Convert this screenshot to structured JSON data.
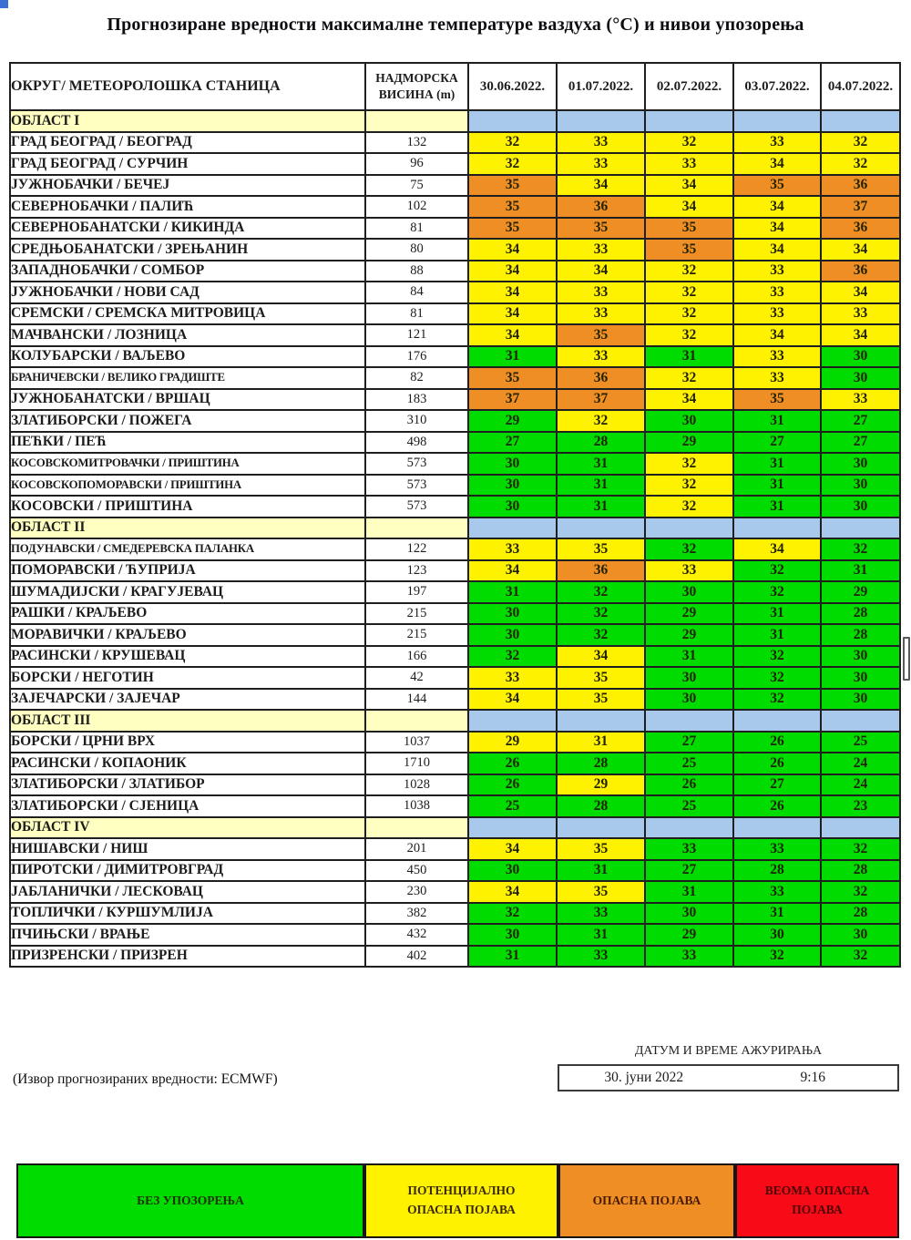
{
  "title": "Прогнозиране вредности максималне температуре ваздуха (°C) и нивои упозорења",
  "colors": {
    "green": "#00DC00",
    "yellow": "#FFF200",
    "orange": "#EF8E24",
    "red": "#F80B16",
    "header_blue": "#A8C8EC",
    "section_yellow": "#FFFFC2",
    "white": "#FFFFFF"
  },
  "table": {
    "station_header": "ОКРУГ/ МЕТЕОРОЛОШКА СТАНИЦА",
    "altitude_header_line1": "НАДМОРСКА",
    "altitude_header_line2": "ВИСИНА (m)",
    "dates": [
      "30.06.2022.",
      "01.07.2022.",
      "02.07.2022.",
      "03.07.2022.",
      "04.07.2022."
    ],
    "sections": [
      {
        "label": "ОБЛАСТ I",
        "rows": [
          {
            "station": "ГРАД БЕОГРАД / БЕОГРАД",
            "altitude": "132",
            "temps": [
              32,
              33,
              32,
              33,
              32
            ],
            "levels": [
              "yellow",
              "yellow",
              "yellow",
              "yellow",
              "yellow"
            ]
          },
          {
            "station": "ГРАД БЕОГРАД / СУРЧИН",
            "altitude": "96",
            "temps": [
              32,
              33,
              33,
              34,
              32
            ],
            "levels": [
              "yellow",
              "yellow",
              "yellow",
              "yellow",
              "yellow"
            ]
          },
          {
            "station": "ЈУЖНОБАЧКИ / БЕЧЕЈ",
            "altitude": "75",
            "temps": [
              35,
              34,
              34,
              35,
              36
            ],
            "levels": [
              "orange",
              "yellow",
              "yellow",
              "orange",
              "orange"
            ]
          },
          {
            "station": "СЕВЕРНОБАЧКИ / ПАЛИЋ",
            "altitude": "102",
            "temps": [
              35,
              36,
              34,
              34,
              37
            ],
            "levels": [
              "orange",
              "orange",
              "yellow",
              "yellow",
              "orange"
            ]
          },
          {
            "station": "СЕВЕРНОБАНАТСКИ / КИКИНДА",
            "altitude": "81",
            "temps": [
              35,
              35,
              35,
              34,
              36
            ],
            "levels": [
              "orange",
              "orange",
              "orange",
              "yellow",
              "orange"
            ]
          },
          {
            "station": "СРЕДЊОБАНАТСКИ / ЗРЕЊАНИН",
            "altitude": "80",
            "temps": [
              34,
              33,
              35,
              34,
              34
            ],
            "levels": [
              "yellow",
              "yellow",
              "orange",
              "yellow",
              "yellow"
            ]
          },
          {
            "station": "ЗАПАДНОБАЧКИ / СОМБОР",
            "altitude": "88",
            "temps": [
              34,
              34,
              32,
              33,
              36
            ],
            "levels": [
              "yellow",
              "yellow",
              "yellow",
              "yellow",
              "orange"
            ]
          },
          {
            "station": "ЈУЖНОБАЧКИ / НОВИ САД",
            "altitude": "84",
            "temps": [
              34,
              33,
              32,
              33,
              34
            ],
            "levels": [
              "yellow",
              "yellow",
              "yellow",
              "yellow",
              "yellow"
            ]
          },
          {
            "station": "СРЕМСКИ / СРЕМСКА МИТРОВИЦА",
            "altitude": "81",
            "temps": [
              34,
              33,
              32,
              33,
              33
            ],
            "levels": [
              "yellow",
              "yellow",
              "yellow",
              "yellow",
              "yellow"
            ]
          },
          {
            "station": "МАЧВАНСКИ / ЛОЗНИЦА",
            "altitude": "121",
            "temps": [
              34,
              35,
              32,
              34,
              34
            ],
            "levels": [
              "yellow",
              "orange",
              "yellow",
              "yellow",
              "yellow"
            ]
          },
          {
            "station": "КОЛУБАРСКИ / ВАЉЕВО",
            "altitude": "176",
            "temps": [
              31,
              33,
              31,
              33,
              30
            ],
            "levels": [
              "green",
              "yellow",
              "green",
              "yellow",
              "green"
            ]
          },
          {
            "station": "БРАНИЧЕВСКИ / ВЕЛИКО ГРАДИШТЕ",
            "altitude": "82",
            "temps": [
              35,
              36,
              32,
              33,
              30
            ],
            "levels": [
              "orange",
              "orange",
              "yellow",
              "yellow",
              "green"
            ]
          },
          {
            "station": "ЈУЖНОБАНАТСКИ / ВРШАЦ",
            "altitude": "183",
            "temps": [
              37,
              37,
              34,
              35,
              33
            ],
            "levels": [
              "orange",
              "orange",
              "yellow",
              "orange",
              "yellow"
            ]
          },
          {
            "station": "ЗЛАТИБОРСКИ / ПОЖЕГА",
            "altitude": "310",
            "temps": [
              29,
              32,
              30,
              31,
              27
            ],
            "levels": [
              "green",
              "yellow",
              "green",
              "green",
              "green"
            ]
          },
          {
            "station": "ПЕЋКИ / ПЕЋ",
            "altitude": "498",
            "temps": [
              27,
              28,
              29,
              27,
              27
            ],
            "levels": [
              "green",
              "green",
              "green",
              "green",
              "green"
            ]
          },
          {
            "station": "КОСОВСКОМИТРОВАЧКИ / ПРИШТИНА",
            "altitude": "573",
            "temps": [
              30,
              31,
              32,
              31,
              30
            ],
            "levels": [
              "green",
              "green",
              "yellow",
              "green",
              "green"
            ]
          },
          {
            "station": "КОСОВСКОПОМОРАВСКИ / ПРИШТИНА",
            "altitude": "573",
            "temps": [
              30,
              31,
              32,
              31,
              30
            ],
            "levels": [
              "green",
              "green",
              "yellow",
              "green",
              "green"
            ]
          },
          {
            "station": "КОСОВСКИ / ПРИШТИНА",
            "altitude": "573",
            "temps": [
              30,
              31,
              32,
              31,
              30
            ],
            "levels": [
              "green",
              "green",
              "yellow",
              "green",
              "green"
            ]
          }
        ]
      },
      {
        "label": "ОБЛАСТ II",
        "rows": [
          {
            "station": "ПОДУНАВСКИ / СМЕДЕРЕВСКА ПАЛАНКА",
            "altitude": "122",
            "temps": [
              33,
              35,
              32,
              34,
              32
            ],
            "levels": [
              "yellow",
              "yellow",
              "green",
              "yellow",
              "green"
            ]
          },
          {
            "station": "ПОМОРАВСКИ / ЋУПРИЈА",
            "altitude": "123",
            "temps": [
              34,
              36,
              33,
              32,
              31
            ],
            "levels": [
              "yellow",
              "orange",
              "yellow",
              "green",
              "green"
            ]
          },
          {
            "station": "ШУМАДИЈСКИ / КРАГУЈЕВАЦ",
            "altitude": "197",
            "temps": [
              31,
              32,
              30,
              32,
              29
            ],
            "levels": [
              "green",
              "green",
              "green",
              "green",
              "green"
            ]
          },
          {
            "station": "РАШКИ / КРАЉЕВО",
            "altitude": "215",
            "temps": [
              30,
              32,
              29,
              31,
              28
            ],
            "levels": [
              "green",
              "green",
              "green",
              "green",
              "green"
            ]
          },
          {
            "station": "МОРАВИЧКИ / КРАЉЕВО",
            "altitude": "215",
            "temps": [
              30,
              32,
              29,
              31,
              28
            ],
            "levels": [
              "green",
              "green",
              "green",
              "green",
              "green"
            ]
          },
          {
            "station": "РАСИНСКИ / КРУШЕВАЦ",
            "altitude": "166",
            "temps": [
              32,
              34,
              31,
              32,
              30
            ],
            "levels": [
              "green",
              "yellow",
              "green",
              "green",
              "green"
            ]
          },
          {
            "station": "БОРСКИ / НЕГОТИН",
            "altitude": "42",
            "temps": [
              33,
              35,
              30,
              32,
              30
            ],
            "levels": [
              "yellow",
              "yellow",
              "green",
              "green",
              "green"
            ]
          },
          {
            "station": "ЗАЈЕЧАРСКИ / ЗАЈЕЧАР",
            "altitude": "144",
            "temps": [
              34,
              35,
              30,
              32,
              30
            ],
            "levels": [
              "yellow",
              "yellow",
              "green",
              "green",
              "green"
            ]
          }
        ]
      },
      {
        "label": "ОБЛАСТ III",
        "rows": [
          {
            "station": "БОРСКИ / ЦРНИ ВРХ",
            "altitude": "1037",
            "temps": [
              29,
              31,
              27,
              26,
              25
            ],
            "levels": [
              "yellow",
              "yellow",
              "green",
              "green",
              "green"
            ]
          },
          {
            "station": "РАСИНСКИ / КОПАОНИК",
            "altitude": "1710",
            "temps": [
              26,
              28,
              25,
              26,
              24
            ],
            "levels": [
              "green",
              "green",
              "green",
              "green",
              "green"
            ]
          },
          {
            "station": "ЗЛАТИБОРСКИ / ЗЛАТИБОР",
            "altitude": "1028",
            "temps": [
              26,
              29,
              26,
              27,
              24
            ],
            "levels": [
              "green",
              "yellow",
              "green",
              "green",
              "green"
            ]
          },
          {
            "station": "ЗЛАТИБОРСКИ / СЈЕНИЦА",
            "altitude": "1038",
            "temps": [
              25,
              28,
              25,
              26,
              23
            ],
            "levels": [
              "green",
              "green",
              "green",
              "green",
              "green"
            ]
          }
        ]
      },
      {
        "label": "ОБЛАСТ IV",
        "rows": [
          {
            "station": "НИШАВСКИ / НИШ",
            "altitude": "201",
            "temps": [
              34,
              35,
              33,
              33,
              32
            ],
            "levels": [
              "yellow",
              "yellow",
              "green",
              "green",
              "green"
            ]
          },
          {
            "station": "ПИРОТСКИ / ДИМИТРОВГРАД",
            "altitude": "450",
            "temps": [
              30,
              31,
              27,
              28,
              28
            ],
            "levels": [
              "green",
              "green",
              "green",
              "green",
              "green"
            ]
          },
          {
            "station": "ЈАБЛАНИЧКИ / ЛЕСКОВАЦ",
            "altitude": "230",
            "temps": [
              34,
              35,
              31,
              33,
              32
            ],
            "levels": [
              "yellow",
              "yellow",
              "green",
              "green",
              "green"
            ]
          },
          {
            "station": "ТОПЛИЧКИ / КУРШУМЛИЈА",
            "altitude": "382",
            "temps": [
              32,
              33,
              30,
              31,
              28
            ],
            "levels": [
              "green",
              "green",
              "green",
              "green",
              "green"
            ]
          },
          {
            "station": "ПЧИЊСКИ / ВРАЊЕ",
            "altitude": "432",
            "temps": [
              30,
              31,
              29,
              30,
              30
            ],
            "levels": [
              "green",
              "green",
              "green",
              "green",
              "green"
            ]
          },
          {
            "station": "ПРИЗРЕНСКИ / ПРИЗРЕН",
            "altitude": "402",
            "temps": [
              31,
              33,
              33,
              32,
              32
            ],
            "levels": [
              "green",
              "green",
              "green",
              "green",
              "green"
            ]
          }
        ]
      }
    ]
  },
  "footer": {
    "update_label": "ДАТУМ И ВРЕМЕ АЖУРИРАЊА",
    "update_date": "30. јуни 2022",
    "update_time": "9:16",
    "source": "(Извор прогнозираних вредности: ECMWF)"
  },
  "legend": [
    {
      "label": "БЕЗ УПОЗОРЕЊА",
      "color": "#00DC00",
      "text_color": "#203000"
    },
    {
      "label": "ПОТЕНЦИЈАЛНО ОПАСНА ПОЈАВА",
      "color": "#FFF200",
      "text_color": "#3a2a00"
    },
    {
      "label": "ОПАСНА ПОЈАВА",
      "color": "#EF8E24",
      "text_color": "#4a1c00"
    },
    {
      "label": "ВЕОМА ОПАСНА ПОЈАВА",
      "color": "#F80B16",
      "text_color": "#4a0404"
    }
  ]
}
